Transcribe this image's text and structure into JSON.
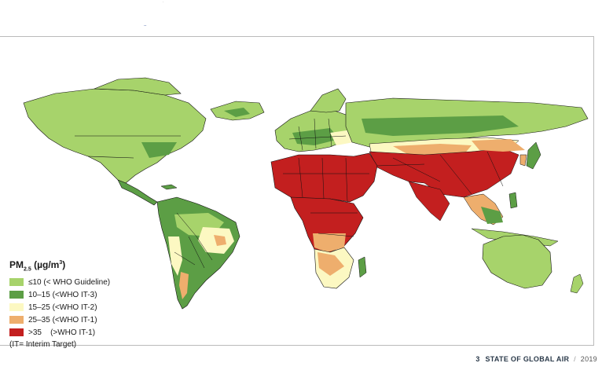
{
  "legend": {
    "title_main": "PM",
    "title_sub": "2.5",
    "title_unit": "(µg/m",
    "title_sup": "3",
    "title_close": ")",
    "items": [
      {
        "label": "≤10 (< WHO Guideline)",
        "color": "#a7d36b"
      },
      {
        "label": "10–15 (<WHO IT-3)",
        "color": "#5c9e45"
      },
      {
        "label": "15–25 (<WHO IT-2)",
        "color": "#fcf8c2"
      },
      {
        "label": "25–35 (<WHO IT-1)",
        "color": "#eeae6d"
      },
      {
        "label": ">35    (>WHO IT-1)",
        "color": "#c31f1f"
      }
    ],
    "note": "(IT= Interim Target)"
  },
  "footer": {
    "page_number": "3",
    "title": "STATE OF GLOBAL AIR",
    "separator": "/",
    "year": "2019"
  },
  "colors": {
    "ocean": "#ffffff",
    "border": "#111111"
  }
}
